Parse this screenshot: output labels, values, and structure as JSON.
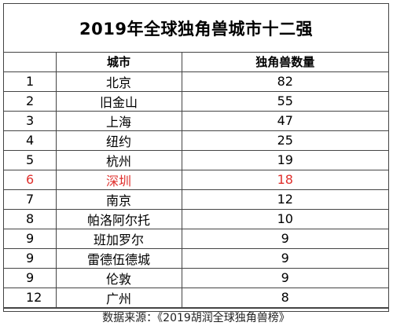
{
  "title": "2019年全球独角兽城市十二强",
  "columns": [
    "",
    "城市",
    "独角兽数量"
  ],
  "rows": [
    {
      "rank": "1",
      "city": "北京",
      "count": "82",
      "highlight": false
    },
    {
      "rank": "2",
      "city": "旧金山",
      "count": "55",
      "highlight": false
    },
    {
      "rank": "3",
      "city": "上海",
      "count": "47",
      "highlight": false
    },
    {
      "rank": "4",
      "city": "纽约",
      "count": "25",
      "highlight": false
    },
    {
      "rank": "5",
      "city": "杭州",
      "count": "19",
      "highlight": false
    },
    {
      "rank": "6",
      "city": "深圳",
      "count": "18",
      "highlight": true
    },
    {
      "rank": "7",
      "city": "南京",
      "count": "12",
      "highlight": false
    },
    {
      "rank": "8",
      "city": "帕洛阿尔托",
      "count": "10",
      "highlight": false
    },
    {
      "rank": "9",
      "city": "班加罗尔",
      "count": "9",
      "highlight": false
    },
    {
      "rank": "9",
      "city": "雷德伍德城",
      "count": "9",
      "highlight": false
    },
    {
      "rank": "9",
      "city": "伦敦",
      "count": "9",
      "highlight": false
    },
    {
      "rank": "12",
      "city": "广州",
      "count": "8",
      "highlight": false
    }
  ],
  "highlight_color": "#e0302d",
  "source": "数据来源：《2019胡润全球独角兽榜》"
}
